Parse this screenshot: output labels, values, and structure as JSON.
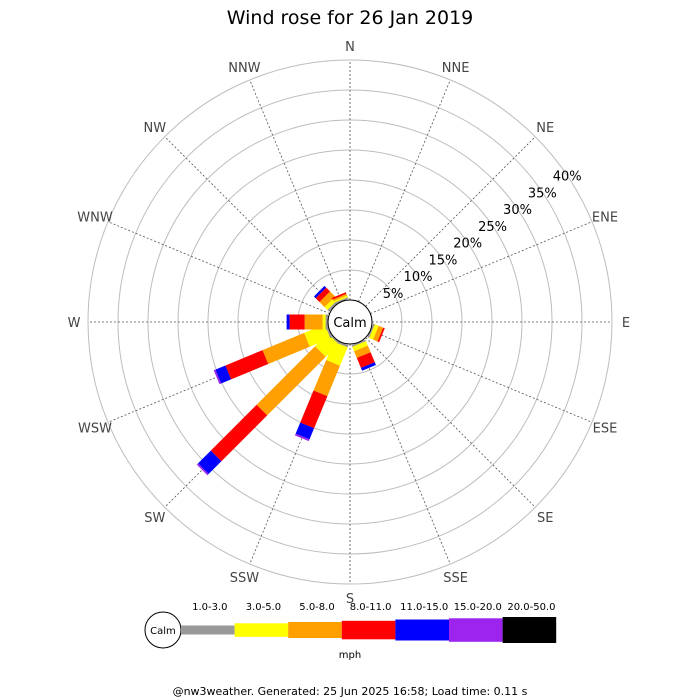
{
  "chart_data": {
    "type": "wind-rose",
    "title": "Wind rose for 26 Jan 2019",
    "directions": [
      "N",
      "NNE",
      "NE",
      "ENE",
      "E",
      "ESE",
      "SE",
      "SSE",
      "S",
      "SSW",
      "SW",
      "WSW",
      "W",
      "WNW",
      "NW",
      "NNW"
    ],
    "radial_ticks": [
      "5%",
      "10%",
      "15%",
      "20%",
      "25%",
      "30%",
      "35%",
      "40%"
    ],
    "radial_max": 40,
    "calm_label": "Calm",
    "speed_bins": [
      {
        "label": "1.0-3.0",
        "color": "#999999"
      },
      {
        "label": "3.0-5.0",
        "color": "#ffff00"
      },
      {
        "label": "5.0-8.0",
        "color": "#ff9f00"
      },
      {
        "label": "8.0-11.0",
        "color": "#ff0000"
      },
      {
        "label": "11.0-15.0",
        "color": "#0000ff"
      },
      {
        "label": "15.0-20.0",
        "color": "#9d23ee"
      },
      {
        "label": "20.0-50.0",
        "color": "#000000"
      }
    ],
    "series": [
      {
        "direction": "N",
        "values": [
          0,
          0,
          0,
          0,
          0,
          0,
          0
        ]
      },
      {
        "direction": "NNE",
        "values": [
          0,
          0,
          0,
          0,
          0,
          0,
          0
        ]
      },
      {
        "direction": "NE",
        "values": [
          0,
          0,
          0,
          0,
          0,
          0,
          0
        ]
      },
      {
        "direction": "ENE",
        "values": [
          0,
          0,
          0,
          0,
          0,
          0,
          0
        ]
      },
      {
        "direction": "E",
        "values": [
          0,
          0,
          0,
          0,
          0,
          0,
          0
        ]
      },
      {
        "direction": "ESE",
        "values": [
          0.3,
          0.7,
          0.8,
          0.3,
          0,
          0,
          0
        ]
      },
      {
        "direction": "SE",
        "values": [
          0,
          0,
          0,
          0,
          0,
          0,
          0
        ]
      },
      {
        "direction": "SSE",
        "values": [
          0.3,
          0.8,
          1.2,
          1.8,
          0.5,
          0,
          0
        ]
      },
      {
        "direction": "S",
        "values": [
          0,
          0,
          0,
          0,
          0,
          0,
          0
        ]
      },
      {
        "direction": "SSW",
        "values": [
          0.4,
          3.3,
          5.5,
          5.8,
          2.0,
          0.3,
          0
        ]
      },
      {
        "direction": "SW",
        "values": [
          0.3,
          3.0,
          13.8,
          10.8,
          3.0,
          0.3,
          0
        ]
      },
      {
        "direction": "WSW",
        "values": [
          0.4,
          3.7,
          7.5,
          6.7,
          1.8,
          0.3,
          0
        ]
      },
      {
        "direction": "W",
        "values": [
          0.4,
          0.5,
          3.0,
          2.5,
          0.5,
          0,
          0
        ]
      },
      {
        "direction": "WNW",
        "values": [
          0,
          0,
          0,
          0,
          0,
          0,
          0
        ]
      },
      {
        "direction": "NW",
        "values": [
          0.4,
          0.7,
          1.2,
          0.9,
          0.4,
          0,
          0
        ]
      },
      {
        "direction": "NNW",
        "values": [
          0.3,
          0.3,
          0.3,
          0.3,
          0,
          0,
          0
        ]
      }
    ],
    "legend": {
      "units": "mph",
      "placement": "bottom"
    }
  },
  "footer": "@nw3weather. Generated: 25 Jun 2025 16:58; Load time: 0.11 s"
}
